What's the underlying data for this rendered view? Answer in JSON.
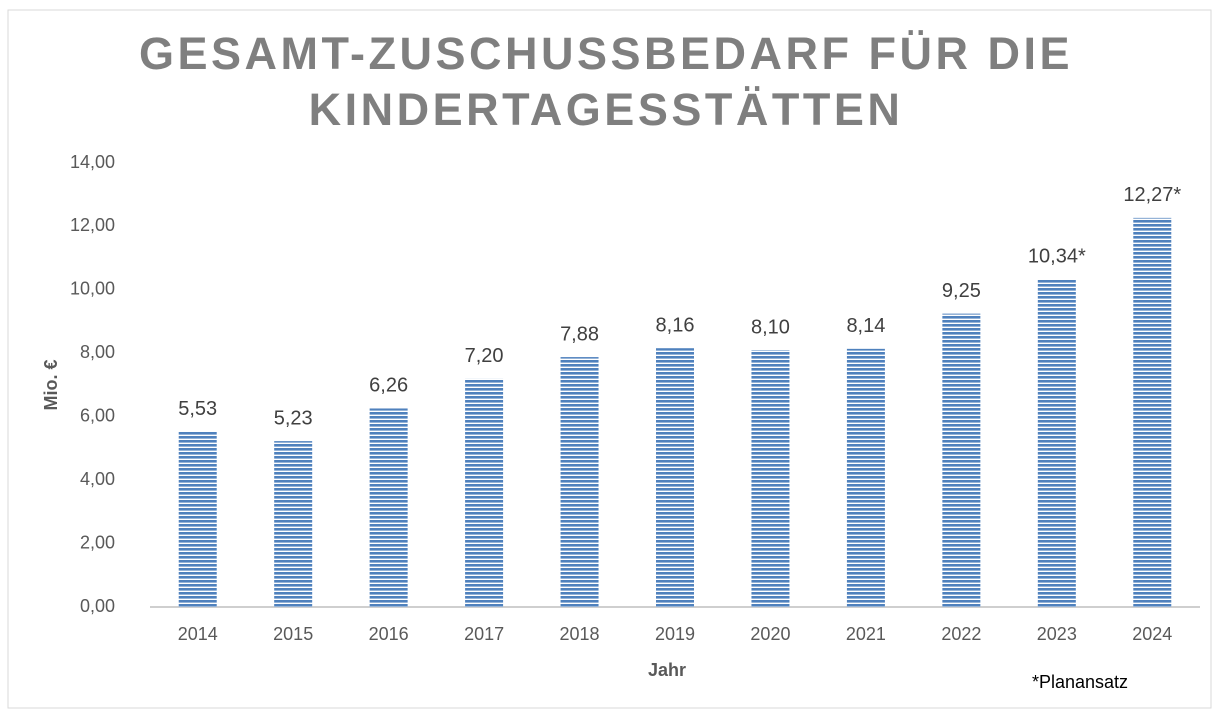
{
  "chart_data": {
    "type": "bar",
    "title": "GESAMT-ZUSCHUSSBEDARF FÜR DIE KINDERTAGESSTÄTTEN",
    "x_label": "Jahr",
    "y_label": "Mio. €",
    "annotation": "*Planansatz",
    "categories": [
      "2014",
      "2015",
      "2016",
      "2017",
      "2018",
      "2019",
      "2020",
      "2021",
      "2022",
      "2023",
      "2024"
    ],
    "values": [
      5.53,
      5.23,
      6.26,
      7.2,
      7.88,
      8.16,
      8.1,
      8.14,
      9.25,
      10.34,
      12.27
    ],
    "value_labels": [
      "5,53",
      "5,23",
      "6,26",
      "7,20",
      "7,88",
      "8,16",
      "8,10",
      "8,14",
      "9,25",
      "10,34*",
      "12,27*"
    ],
    "color": "#4f81bd",
    "ylim": [
      0,
      14
    ],
    "yticks": [
      {
        "value": 0,
        "label": "0,00"
      },
      {
        "value": 2,
        "label": "2,00"
      },
      {
        "value": 4,
        "label": "4,00"
      },
      {
        "value": 6,
        "label": "6,00"
      },
      {
        "value": 8,
        "label": "8,00"
      },
      {
        "value": 10,
        "label": "10,00"
      },
      {
        "value": 12,
        "label": "12,00"
      },
      {
        "value": 14,
        "label": "14,00"
      }
    ],
    "grid": false
  }
}
